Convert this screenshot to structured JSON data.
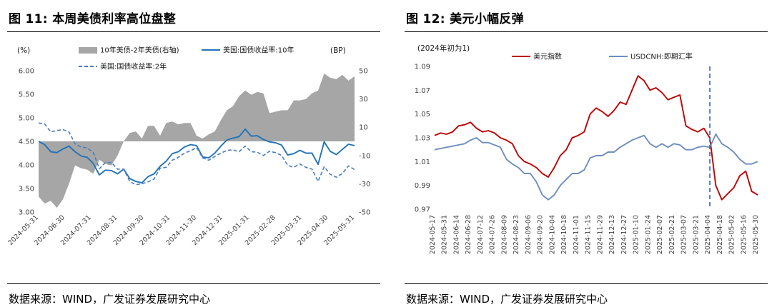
{
  "panels": [
    {
      "title": "图 11:  本周美债利率高位盘整",
      "source": "数据来源：WIND，广发证券发展研究中心"
    },
    {
      "title": "图 12:  美元小幅反弹",
      "source": "数据来源：WIND，广发证券发展研究中心"
    }
  ],
  "chart_data": [
    {
      "type": "line",
      "title": "本周美债利率高位盘整",
      "x_labels": [
        "2024-05-31",
        "2024-06-30",
        "2024-07-31",
        "2024-08-31",
        "2024-09-30",
        "2024-10-31",
        "2024-11-30",
        "2024-12-31",
        "2025-01-31",
        "2025-02-28",
        "2025-03-31",
        "2025-04-30",
        "2025-05-31"
      ],
      "left_axis": {
        "label": "(%)",
        "min": 3.0,
        "max": 6.0,
        "ticks": [
          "6.00",
          "5.50",
          "5.00",
          "4.50",
          "4.00",
          "3.50",
          "3.00"
        ]
      },
      "right_axis": {
        "label": "(BP)",
        "min": -50,
        "max": 50,
        "ticks": [
          "50",
          "30",
          "10",
          "-10",
          "-30",
          "-50"
        ]
      },
      "series": [
        {
          "name": "10年美债-2年美债(右轴)",
          "kind": "area",
          "axis": "right",
          "color": "#A6A6A6",
          "baseline": 0,
          "values": [
            -39,
            -44,
            -42,
            -47,
            -41,
            -30,
            -17,
            -19,
            -20,
            -23,
            -13,
            -16,
            -17,
            -10,
            0,
            6,
            7,
            2,
            11,
            11,
            4,
            13,
            14,
            12,
            13,
            13,
            4,
            2,
            5,
            7,
            15,
            22,
            25,
            32,
            36,
            33,
            35,
            34,
            20,
            21,
            22,
            22,
            29,
            29,
            30,
            34,
            36,
            48,
            45,
            44,
            47,
            43,
            46
          ]
        },
        {
          "name": "美国:国债收益率:10年",
          "kind": "line",
          "axis": "left",
          "color": "#2273B8",
          "values": [
            4.5,
            4.43,
            4.28,
            4.26,
            4.34,
            4.4,
            4.28,
            4.19,
            4.16,
            4.03,
            3.79,
            3.89,
            3.88,
            3.81,
            3.91,
            3.71,
            3.65,
            3.62,
            3.75,
            3.81,
            3.97,
            4.08,
            4.24,
            4.28,
            4.38,
            4.43,
            4.41,
            4.17,
            4.15,
            4.25,
            4.4,
            4.53,
            4.57,
            4.6,
            4.76,
            4.61,
            4.62,
            4.54,
            4.49,
            4.47,
            4.42,
            4.21,
            4.24,
            4.31,
            4.25,
            4.25,
            4.01,
            4.49,
            4.29,
            4.22,
            4.33,
            4.44,
            4.41
          ]
        },
        {
          "name": "美国:国债收益率:2年",
          "kind": "dash",
          "axis": "left",
          "color": "#4A7EBD",
          "values": [
            4.89,
            4.87,
            4.7,
            4.73,
            4.75,
            4.7,
            4.45,
            4.38,
            4.36,
            4.26,
            3.92,
            4.05,
            4.05,
            3.91,
            3.91,
            3.65,
            3.58,
            3.6,
            3.64,
            3.7,
            3.93,
            3.95,
            4.1,
            4.16,
            4.25,
            4.3,
            4.37,
            4.15,
            4.1,
            4.18,
            4.25,
            4.31,
            4.32,
            4.28,
            4.4,
            4.28,
            4.27,
            4.2,
            4.29,
            4.26,
            4.2,
            3.99,
            3.95,
            4.02,
            3.95,
            3.91,
            3.65,
            3.96,
            3.8,
            3.74,
            3.82,
            3.98,
            3.9
          ]
        }
      ]
    },
    {
      "type": "line",
      "title": "美元小幅反弹",
      "note": "(2024年初为1)",
      "x_labels": [
        "2024-05-17",
        "2024-05-31",
        "2024-06-14",
        "2024-06-28",
        "2024-07-12",
        "2024-07-26",
        "2024-08-09",
        "2024-08-23",
        "2024-09-06",
        "2024-09-20",
        "2024-10-04",
        "2024-10-18",
        "2024-11-01",
        "2024-11-15",
        "2024-11-29",
        "2024-12-13",
        "2024-12-27",
        "2025-01-10",
        "2025-01-24",
        "2025-02-07",
        "2025-02-21",
        "2025-03-07",
        "2025-03-21",
        "2025-04-04",
        "2025-04-18",
        "2025-05-02",
        "2025-05-16",
        "2025-05-30"
      ],
      "left_axis": {
        "min": 0.97,
        "max": 1.09,
        "ticks": [
          "1.09",
          "1.07",
          "1.05",
          "1.03",
          "1.01",
          "0.99",
          "0.97"
        ]
      },
      "series": [
        {
          "name": "美元指数",
          "kind": "line",
          "axis": "left",
          "color": "#C00000",
          "values": [
            1.032,
            1.034,
            1.033,
            1.035,
            1.04,
            1.041,
            1.043,
            1.038,
            1.035,
            1.036,
            1.034,
            1.03,
            1.028,
            1.025,
            1.015,
            1.01,
            1.008,
            1.005,
            1.0,
            0.997,
            1.005,
            1.015,
            1.02,
            1.03,
            1.032,
            1.035,
            1.05,
            1.055,
            1.052,
            1.048,
            1.053,
            1.06,
            1.058,
            1.07,
            1.082,
            1.078,
            1.07,
            1.072,
            1.068,
            1.062,
            1.064,
            1.066,
            1.04,
            1.037,
            1.035,
            1.038,
            1.03,
            0.99,
            0.978,
            0.983,
            0.988,
            0.998,
            1.002,
            0.985,
            0.982
          ]
        },
        {
          "name": "USDCNH:即期汇率",
          "kind": "line",
          "axis": "left",
          "color": "#6C8EBF",
          "values": [
            1.02,
            1.021,
            1.022,
            1.023,
            1.024,
            1.025,
            1.028,
            1.03,
            1.026,
            1.026,
            1.024,
            1.022,
            1.012,
            1.008,
            1.005,
            1.0,
            1.0,
            0.993,
            0.982,
            0.978,
            0.982,
            0.99,
            0.995,
            1.0,
            1.0,
            1.003,
            1.013,
            1.015,
            1.015,
            1.018,
            1.018,
            1.022,
            1.025,
            1.028,
            1.03,
            1.032,
            1.025,
            1.022,
            1.025,
            1.022,
            1.025,
            1.024,
            1.02,
            1.02,
            1.022,
            1.023,
            1.022,
            1.033,
            1.025,
            1.022,
            1.018,
            1.012,
            1.008,
            1.008,
            1.01
          ]
        }
      ],
      "vline": {
        "at_label": "2025-04-04",
        "color": "#4472C4",
        "style": "dashed"
      }
    }
  ]
}
